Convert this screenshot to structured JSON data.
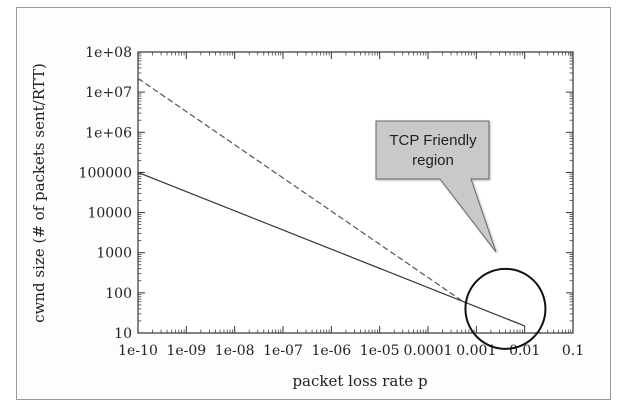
{
  "chart_data": {
    "type": "line",
    "title": "",
    "xlabel": "packet loss rate p",
    "ylabel": "cwnd size (# of packets sent/RTT)",
    "xscale": "log",
    "yscale": "log",
    "xlim": [
      1e-10,
      0.1
    ],
    "ylim": [
      10,
      100000000
    ],
    "x_ticks": [
      {
        "value": 1e-10,
        "label": "1e-10"
      },
      {
        "value": 1e-09,
        "label": "1e-09"
      },
      {
        "value": 1e-08,
        "label": "1e-08"
      },
      {
        "value": 1e-07,
        "label": "1e-07"
      },
      {
        "value": 1e-06,
        "label": "1e-06"
      },
      {
        "value": 1e-05,
        "label": "1e-05"
      },
      {
        "value": 0.0001,
        "label": "0.0001"
      },
      {
        "value": 0.001,
        "label": "0.001"
      },
      {
        "value": 0.01,
        "label": "0.01"
      },
      {
        "value": 0.1,
        "label": "0.1"
      }
    ],
    "y_ticks": [
      {
        "value": 10,
        "label": "10"
      },
      {
        "value": 100,
        "label": "100"
      },
      {
        "value": 1000,
        "label": "1000"
      },
      {
        "value": 10000,
        "label": "10000"
      },
      {
        "value": 100000,
        "label": "100000"
      },
      {
        "value": 1000000,
        "label": "1e+06"
      },
      {
        "value": 10000000,
        "label": "1e+07"
      },
      {
        "value": 100000000,
        "label": "1e+08"
      }
    ],
    "grid": false,
    "series": [
      {
        "style": "solid",
        "color": "#333333",
        "points": [
          [
            1e-10,
            100000
          ],
          [
            0.01,
            15
          ]
        ]
      },
      {
        "style": "dashed",
        "color": "#555555",
        "points": [
          [
            1e-10,
            22000000
          ],
          [
            0.0006,
            55
          ]
        ]
      }
    ],
    "annotations": [
      {
        "kind": "callout",
        "lines": [
          "TCP Friendly",
          "region"
        ],
        "fill": "#c9c9c9"
      },
      {
        "kind": "circle",
        "center": [
          0.004,
          40
        ]
      }
    ]
  }
}
